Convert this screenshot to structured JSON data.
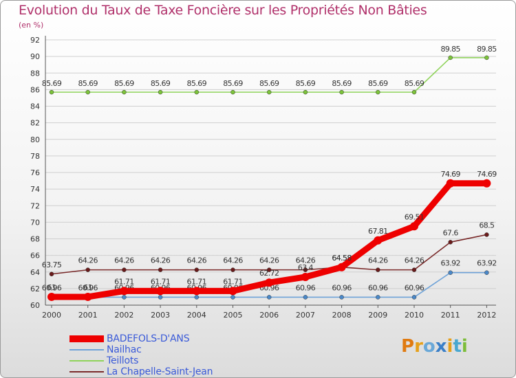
{
  "colors": {
    "title": "#b0306a",
    "legend_text": "#3a5ad8",
    "grid": "#cfcfcf",
    "axis": "#555555"
  },
  "logo": {
    "text": "Proxiti",
    "letters": [
      {
        "ch": "P",
        "color": "#e07a10"
      },
      {
        "ch": "r",
        "color": "#e6a01a"
      },
      {
        "ch": "o",
        "color": "#6aa8d8"
      },
      {
        "ch": "x",
        "color": "#3a7fc8"
      },
      {
        "ch": "i",
        "color": "#e6a01a"
      },
      {
        "ch": "t",
        "color": "#4aa8d0"
      },
      {
        "ch": "i",
        "color": "#7cbd3a"
      }
    ]
  },
  "chart_data": {
    "type": "line",
    "title": "Evolution du Taux de Taxe Foncière sur les Propriétés Non Bâties",
    "subtitle": "(en %)",
    "xlabel": "",
    "ylabel": "",
    "ylim": [
      60,
      92
    ],
    "yticks": [
      60,
      62,
      64,
      66,
      68,
      70,
      72,
      74,
      76,
      78,
      80,
      82,
      84,
      86,
      88,
      90,
      92
    ],
    "categories": [
      "2000",
      "2001",
      "2002",
      "2003",
      "2004",
      "2005",
      "2006",
      "2007",
      "2008",
      "2009",
      "2010",
      "2011",
      "2012"
    ],
    "grid": true,
    "legend_position": "bottom-left",
    "series": [
      {
        "name": "Teillots",
        "color": "#8fd35a",
        "marker_color": "#7cc33a",
        "values": [
          85.69,
          85.69,
          85.69,
          85.69,
          85.69,
          85.69,
          85.69,
          85.69,
          85.69,
          85.69,
          85.69,
          89.85,
          89.85
        ],
        "labels": [
          "85.69",
          "85.69",
          "85.69",
          "85.69",
          "85.69",
          "85.69",
          "85.69",
          "85.69",
          "85.69",
          "85.69",
          "85.69",
          "89.85",
          "89.85"
        ]
      },
      {
        "name": "La Chapelle-Saint-Jean",
        "color": "#7a2a2a",
        "marker_color": "#6a1a1a",
        "values": [
          63.75,
          64.26,
          64.26,
          64.26,
          64.26,
          64.26,
          64.26,
          64.26,
          64.58,
          64.26,
          64.26,
          67.6,
          68.5
        ],
        "labels": [
          "63.75",
          "64.26",
          "64.26",
          "64.26",
          "64.26",
          "64.26",
          "64.26",
          "64.26",
          "64.58",
          "64.26",
          "64.26",
          "67.6",
          "68.5"
        ]
      },
      {
        "name": "Nailhac",
        "color": "#6fa3d8",
        "marker_color": "#4a88c8",
        "values": [
          60.96,
          60.96,
          60.96,
          60.96,
          60.96,
          60.96,
          60.96,
          60.96,
          60.96,
          60.96,
          60.96,
          63.92,
          63.92
        ],
        "labels": [
          "60.96",
          "60.96",
          "60.96",
          "60.96",
          "60.96",
          "60.96",
          "60.96",
          "60.96",
          "60.96",
          "60.96",
          "60.96",
          "63.92",
          "63.92"
        ]
      },
      {
        "name": "BADEFOLS-D'ANS",
        "color": "#ee0000",
        "marker_color": "#ee0000",
        "values": [
          61.0,
          61.0,
          61.71,
          61.71,
          61.71,
          61.71,
          62.72,
          63.4,
          64.58,
          67.81,
          69.51,
          74.69,
          74.69
        ],
        "labels": [
          "61",
          "61",
          "61.71",
          "61.71",
          "61.71",
          "61.71",
          "62.72",
          "63.4",
          "64.58",
          "67.81",
          "69.51",
          "74.69",
          "74.69"
        ]
      }
    ],
    "legend": [
      "BADEFOLS-D'ANS",
      "Nailhac",
      "Teillots",
      "La Chapelle-Saint-Jean"
    ]
  }
}
